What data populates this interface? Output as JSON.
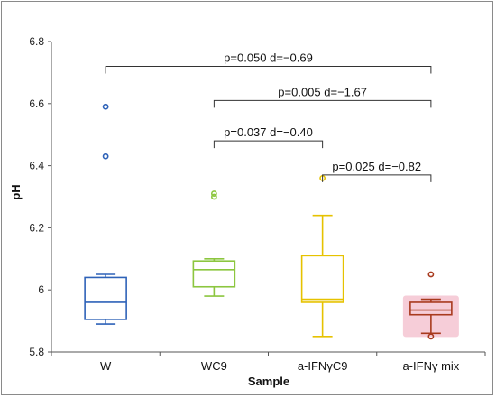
{
  "chart_data": {
    "type": "box",
    "xlabel": "Sample",
    "ylabel": "pH",
    "ylim": [
      5.8,
      6.8
    ],
    "yticks": [
      "5.8",
      "6",
      "6.2",
      "6.4",
      "6.6",
      "6.8"
    ],
    "grid": false,
    "categories": [
      "W",
      "WC9",
      "a-IFNγC9",
      "a-IFNγ mix"
    ],
    "boxes": [
      {
        "category": "W",
        "color": "#2e62b8",
        "whisker_low": 5.89,
        "q1": 5.905,
        "median": 5.96,
        "q3": 6.04,
        "whisker_high": 6.05,
        "outliers": [
          6.59,
          6.43
        ]
      },
      {
        "category": "WC9",
        "color": "#8cc63f",
        "whisker_low": 5.98,
        "q1": 6.01,
        "median": 6.065,
        "q3": 6.093,
        "whisker_high": 6.1,
        "outliers": [
          6.31,
          6.3
        ]
      },
      {
        "category": "a-IFNγC9",
        "color": "#e6c200",
        "whisker_low": 5.85,
        "q1": 5.96,
        "median": 5.97,
        "q3": 6.11,
        "whisker_high": 6.24,
        "outliers": [
          6.36
        ]
      },
      {
        "category": "a-IFNγ mix",
        "color": "#a83a1e",
        "highlight": "#f6cdd8",
        "whisker_low": 5.86,
        "q1": 5.92,
        "median": 5.935,
        "q3": 5.96,
        "whisker_high": 5.97,
        "outliers": [
          6.05,
          5.85
        ]
      }
    ],
    "comparisons": [
      {
        "from": 0,
        "to": 3,
        "y": 6.72,
        "label": "p=0.050  d=−0.69"
      },
      {
        "from": 1,
        "to": 3,
        "y": 6.61,
        "label": "p=0.005  d=−1.67"
      },
      {
        "from": 1,
        "to": 2,
        "y": 6.48,
        "label": "p=0.037  d=−0.40"
      },
      {
        "from": 2,
        "to": 3,
        "y": 6.37,
        "label": "p=0.025  d=−0.82"
      }
    ]
  }
}
